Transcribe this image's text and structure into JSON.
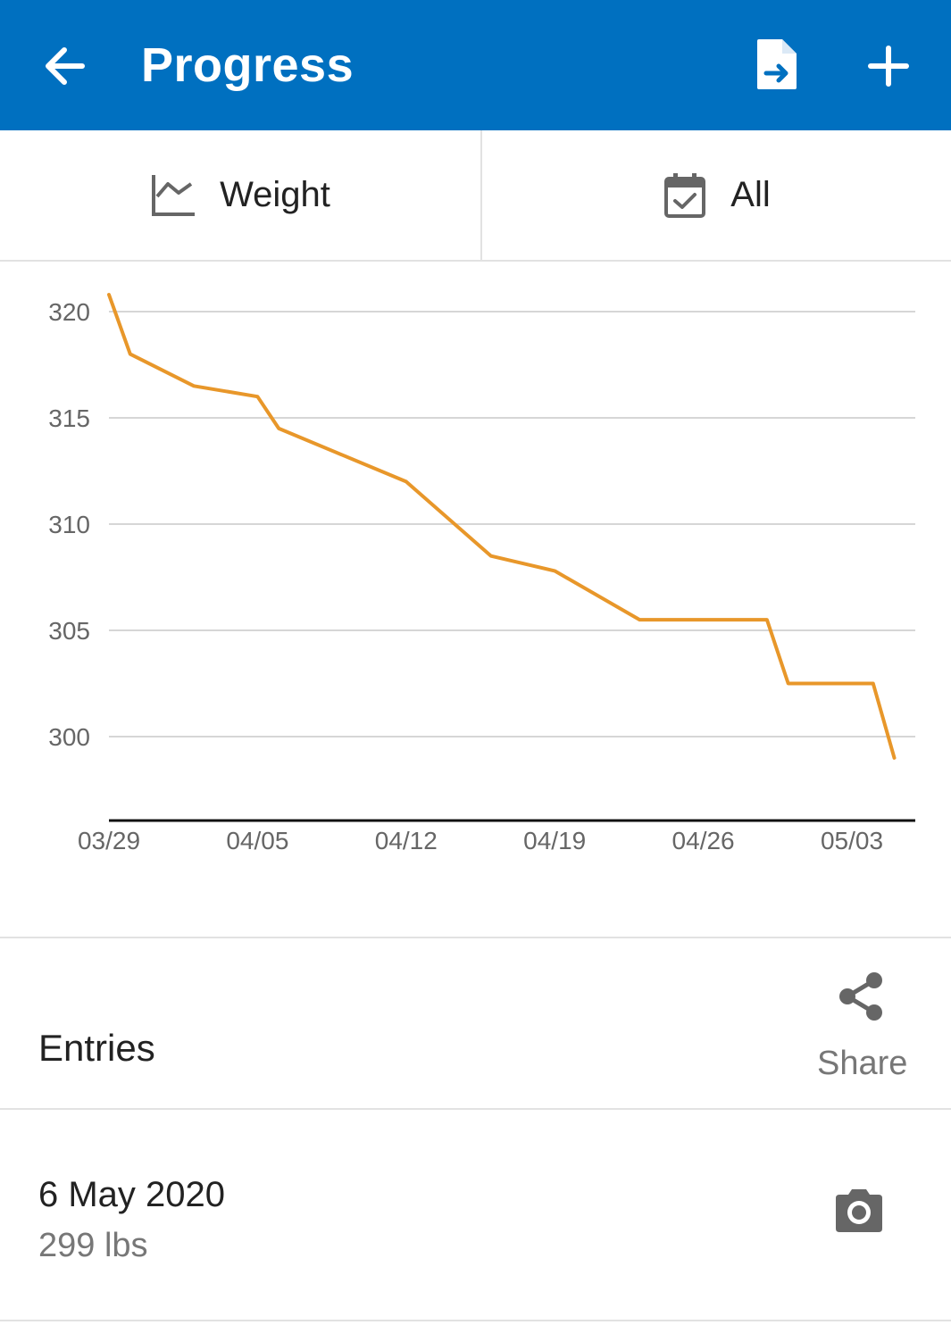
{
  "appbar": {
    "title": "Progress",
    "background": "#0070c0",
    "icons": {
      "back": "arrow-left-icon",
      "export": "file-export-icon",
      "add": "plus-icon"
    }
  },
  "selector": {
    "metric_label": "Weight",
    "metric_icon": "line-chart-icon",
    "range_label": "All",
    "range_icon": "calendar-check-icon"
  },
  "chart_data": {
    "type": "line",
    "line_color": "#e8972a",
    "y_ticks": [
      320,
      315,
      310,
      305,
      300
    ],
    "x_ticks": [
      "03/29",
      "04/05",
      "04/12",
      "04/19",
      "04/26",
      "05/03"
    ],
    "grid": true,
    "series": [
      {
        "points": [
          {
            "x": "03/29",
            "y": 320.8
          },
          {
            "x": "03/30",
            "y": 318.0
          },
          {
            "x": "04/02",
            "y": 316.5
          },
          {
            "x": "04/05",
            "y": 316.0
          },
          {
            "x": "04/06",
            "y": 314.5
          },
          {
            "x": "04/12",
            "y": 312.0
          },
          {
            "x": "04/16",
            "y": 308.5
          },
          {
            "x": "04/19",
            "y": 307.8
          },
          {
            "x": "04/23",
            "y": 305.5
          },
          {
            "x": "04/29",
            "y": 305.5
          },
          {
            "x": "04/30",
            "y": 302.5
          },
          {
            "x": "05/04",
            "y": 302.5
          },
          {
            "x": "05/05",
            "y": 299.0
          }
        ]
      }
    ]
  },
  "entries": {
    "title": "Entries",
    "share_label": "Share",
    "share_icon": "share-icon",
    "items": [
      {
        "date": "6 May 2020",
        "value": "299 lbs",
        "icon": "camera-icon"
      }
    ]
  }
}
